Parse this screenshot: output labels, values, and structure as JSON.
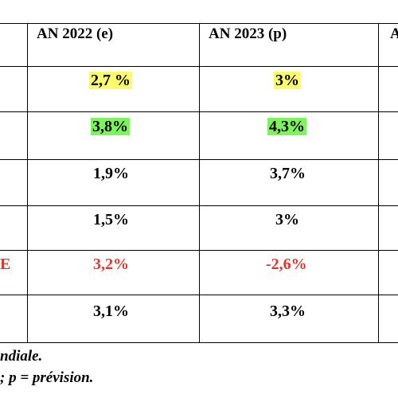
{
  "table": {
    "headers": [
      "AN 2022 (e)",
      "AN 2023 (p)",
      "A"
    ],
    "row_label_fragment": "E",
    "rows": [
      {
        "y2022": "2,7 %",
        "y2023": "3%",
        "highlight": "#fbfb6b"
      },
      {
        "y2022": "3,8%",
        "y2023": "4,3%",
        "highlight": "#7bf55b"
      },
      {
        "y2022": "1,9%",
        "y2023": "3,7%"
      },
      {
        "y2022": "1,5%",
        "y2023": "3%"
      },
      {
        "y2022": "3,2%",
        "y2023": "-2,6%",
        "color": "#e8322a"
      },
      {
        "y2022": "3,1%",
        "y2023": "3,3%"
      }
    ]
  },
  "footnotes": {
    "line1": "ndiale.",
    "line2": "; p = prévision."
  }
}
